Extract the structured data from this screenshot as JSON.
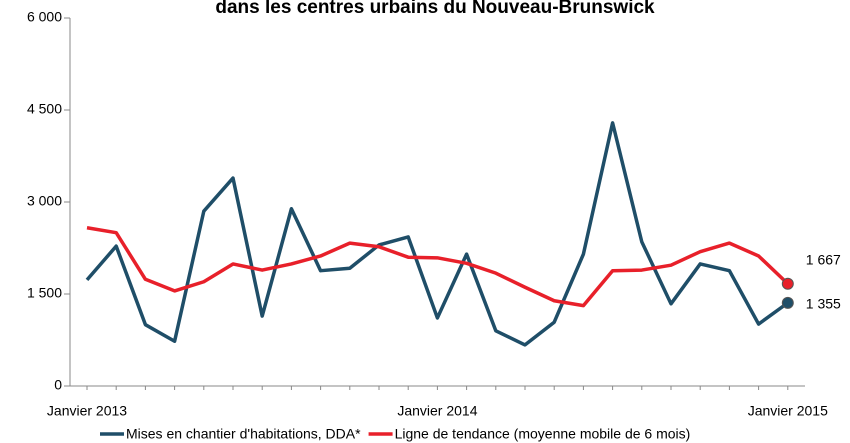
{
  "chart_data": {
    "type": "line",
    "title": "dans les centres urbains du Nouveau-Brunswick",
    "categories": [
      "Janvier 2013",
      null,
      null,
      null,
      null,
      null,
      null,
      null,
      null,
      null,
      null,
      null,
      "Janvier 2014",
      null,
      null,
      null,
      null,
      null,
      null,
      null,
      null,
      null,
      null,
      null,
      "Janvier 2015"
    ],
    "series": [
      {
        "name": "Mises en chantier d'habitations, DDA*",
        "color": "#1f4e68",
        "values": [
          1730,
          2280,
          1000,
          730,
          2850,
          3390,
          1140,
          2890,
          1880,
          1920,
          2300,
          2430,
          1110,
          2150,
          900,
          670,
          1040,
          2150,
          4290,
          2350,
          1340,
          1990,
          1880,
          1010,
          1355
        ],
        "value_labels": [
          null,
          null,
          null,
          null,
          null,
          null,
          null,
          null,
          null,
          null,
          null,
          null,
          null,
          null,
          null,
          null,
          null,
          null,
          null,
          null,
          null,
          null,
          null,
          null,
          "1 355"
        ]
      },
      {
        "name": "Ligne de tendance (moyenne mobile de 6 mois)",
        "color": "#e8202a",
        "values": [
          2580,
          2500,
          1740,
          1550,
          1700,
          1990,
          1890,
          1990,
          2120,
          2330,
          2270,
          2100,
          2090,
          2000,
          1840,
          1610,
          1390,
          1310,
          1880,
          1890,
          1970,
          2190,
          2330,
          2120,
          1667
        ],
        "value_labels": [
          null,
          null,
          null,
          null,
          null,
          null,
          null,
          null,
          null,
          null,
          null,
          null,
          null,
          null,
          null,
          null,
          null,
          null,
          null,
          null,
          null,
          null,
          null,
          null,
          "1 667"
        ]
      }
    ],
    "ylim": [
      0,
      6000
    ],
    "yticks": [
      0,
      {
        "value": 1500,
        "label": "1 500"
      },
      {
        "value": 3000,
        "label": "3 000"
      },
      {
        "value": 4500,
        "label": "4 500"
      },
      {
        "value": 6000,
        "label": "6 000"
      }
    ],
    "grid": false,
    "legend": "bottom"
  }
}
